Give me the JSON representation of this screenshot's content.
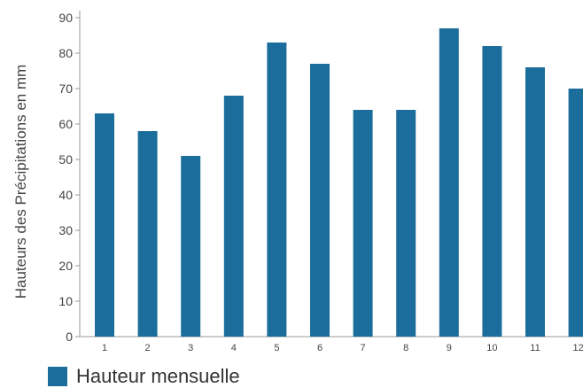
{
  "chart_data": {
    "type": "bar",
    "categories": [
      "1",
      "2",
      "3",
      "4",
      "5",
      "6",
      "7",
      "8",
      "9",
      "10",
      "11",
      "12"
    ],
    "series": [
      {
        "name": "Hauteur mensuelle",
        "values": [
          63,
          58,
          51,
          68,
          83,
          77,
          64,
          64,
          87,
          82,
          76,
          70
        ]
      }
    ],
    "xlabel": "",
    "ylabel": "Hauteurs des Précipitations en mm",
    "ylim": [
      0,
      90
    ],
    "yticks": [
      0,
      10,
      20,
      30,
      40,
      50,
      60,
      70,
      80,
      90
    ],
    "grid": false,
    "legend": "bottom-left",
    "colors": {
      "bar": "#1b6e9b",
      "axis": "#999999",
      "text": "#444444"
    }
  }
}
